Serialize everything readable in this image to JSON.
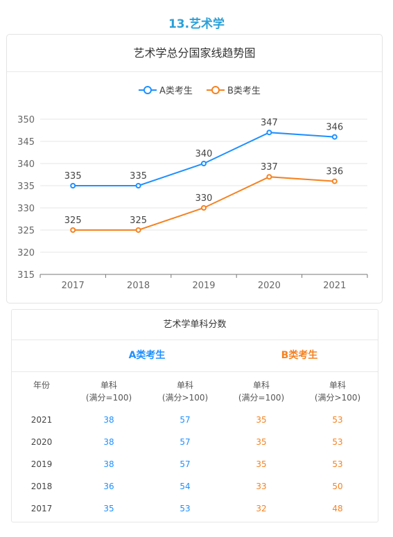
{
  "heading": "13.艺术学",
  "chart_data": {
    "type": "line",
    "title": "艺术学总分国家线趋势图",
    "categories": [
      "2017",
      "2018",
      "2019",
      "2020",
      "2021"
    ],
    "series": [
      {
        "name": "A类考生",
        "values": [
          335,
          335,
          340,
          347,
          346
        ],
        "color": "#1e90ff"
      },
      {
        "name": "B类考生",
        "values": [
          325,
          325,
          330,
          337,
          336
        ],
        "color": "#f58220"
      }
    ],
    "ylim": [
      315,
      350
    ],
    "yticks": [
      315,
      320,
      325,
      330,
      335,
      340,
      345,
      350
    ],
    "legend": "top-center",
    "grid": true
  },
  "table": {
    "title": "艺术学单科分数",
    "groups": {
      "a": "A类考生",
      "b": "B类考生"
    },
    "year_header": "年份",
    "col_headers": [
      {
        "line1": "单科",
        "line2": "(满分=100)"
      },
      {
        "line1": "单科",
        "line2": "(满分>100)"
      },
      {
        "line1": "单科",
        "line2": "(满分=100)"
      },
      {
        "line1": "单科",
        "line2": "(满分>100)"
      }
    ],
    "rows": [
      {
        "year": "2021",
        "v": [
          "38",
          "57",
          "35",
          "53"
        ]
      },
      {
        "year": "2020",
        "v": [
          "38",
          "57",
          "35",
          "53"
        ]
      },
      {
        "year": "2019",
        "v": [
          "38",
          "57",
          "35",
          "53"
        ]
      },
      {
        "year": "2018",
        "v": [
          "36",
          "54",
          "33",
          "50"
        ]
      },
      {
        "year": "2017",
        "v": [
          "35",
          "53",
          "32",
          "48"
        ]
      }
    ]
  }
}
